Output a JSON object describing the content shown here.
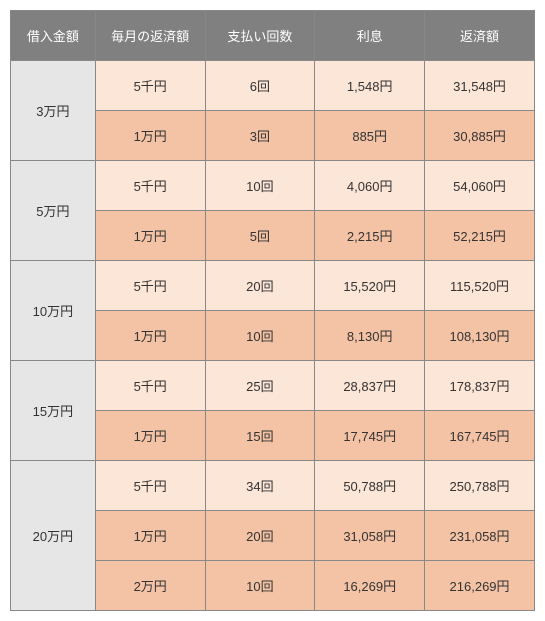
{
  "colors": {
    "header_bg": "#808080",
    "header_fg": "#ffffff",
    "loan_cell_bg": "#e6e6e6",
    "row_light": "#fce6d8",
    "row_dark": "#f4c3a6",
    "text": "#333333",
    "border": "#888888"
  },
  "headers": {
    "loan_amount": "借入金額",
    "monthly_payment": "毎月の返済額",
    "payment_count": "支払い回数",
    "interest": "利息",
    "total_repayment": "返済額"
  },
  "groups": [
    {
      "loan_amount": "3万円",
      "rows": [
        {
          "monthly": "5千円",
          "count": "6回",
          "interest": "1,548円",
          "total": "31,548円",
          "shade": "light"
        },
        {
          "monthly": "1万円",
          "count": "3回",
          "interest": "885円",
          "total": "30,885円",
          "shade": "dark"
        }
      ]
    },
    {
      "loan_amount": "5万円",
      "rows": [
        {
          "monthly": "5千円",
          "count": "10回",
          "interest": "4,060円",
          "total": "54,060円",
          "shade": "light"
        },
        {
          "monthly": "1万円",
          "count": "5回",
          "interest": "2,215円",
          "total": "52,215円",
          "shade": "dark"
        }
      ]
    },
    {
      "loan_amount": "10万円",
      "rows": [
        {
          "monthly": "5千円",
          "count": "20回",
          "interest": "15,520円",
          "total": "115,520円",
          "shade": "light"
        },
        {
          "monthly": "1万円",
          "count": "10回",
          "interest": "8,130円",
          "total": "108,130円",
          "shade": "dark"
        }
      ]
    },
    {
      "loan_amount": "15万円",
      "rows": [
        {
          "monthly": "5千円",
          "count": "25回",
          "interest": "28,837円",
          "total": "178,837円",
          "shade": "light"
        },
        {
          "monthly": "1万円",
          "count": "15回",
          "interest": "17,745円",
          "total": "167,745円",
          "shade": "dark"
        }
      ]
    },
    {
      "loan_amount": "20万円",
      "rows": [
        {
          "monthly": "5千円",
          "count": "34回",
          "interest": "50,788円",
          "total": "250,788円",
          "shade": "light"
        },
        {
          "monthly": "1万円",
          "count": "20回",
          "interest": "31,058円",
          "total": "231,058円",
          "shade": "dark"
        },
        {
          "monthly": "2万円",
          "count": "10回",
          "interest": "16,269円",
          "total": "216,269円",
          "shade": "dark"
        }
      ]
    }
  ]
}
